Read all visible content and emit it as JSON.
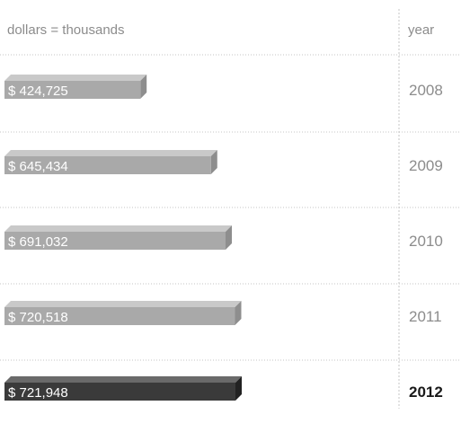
{
  "chart_data": {
    "type": "bar",
    "orientation": "horizontal",
    "unit_note": "dollars = thousands",
    "year_header": "year",
    "categories": [
      "2008",
      "2009",
      "2010",
      "2011",
      "2012"
    ],
    "values": [
      424725,
      645434,
      691032,
      720518,
      721948
    ],
    "value_labels": [
      "$ 424,725",
      "$ 645,434",
      "$ 691,032",
      "$ 720,518",
      "$ 721,948"
    ],
    "highlight_index": 4,
    "colors": {
      "bar": "#a9a9a9",
      "bar_top": "#c9c9c9",
      "bar_side": "#8e8e8e",
      "highlight": "#3a3a3a",
      "highlight_top": "#6a6a6a",
      "highlight_side": "#222222",
      "rule": "#c4c4c4"
    }
  }
}
